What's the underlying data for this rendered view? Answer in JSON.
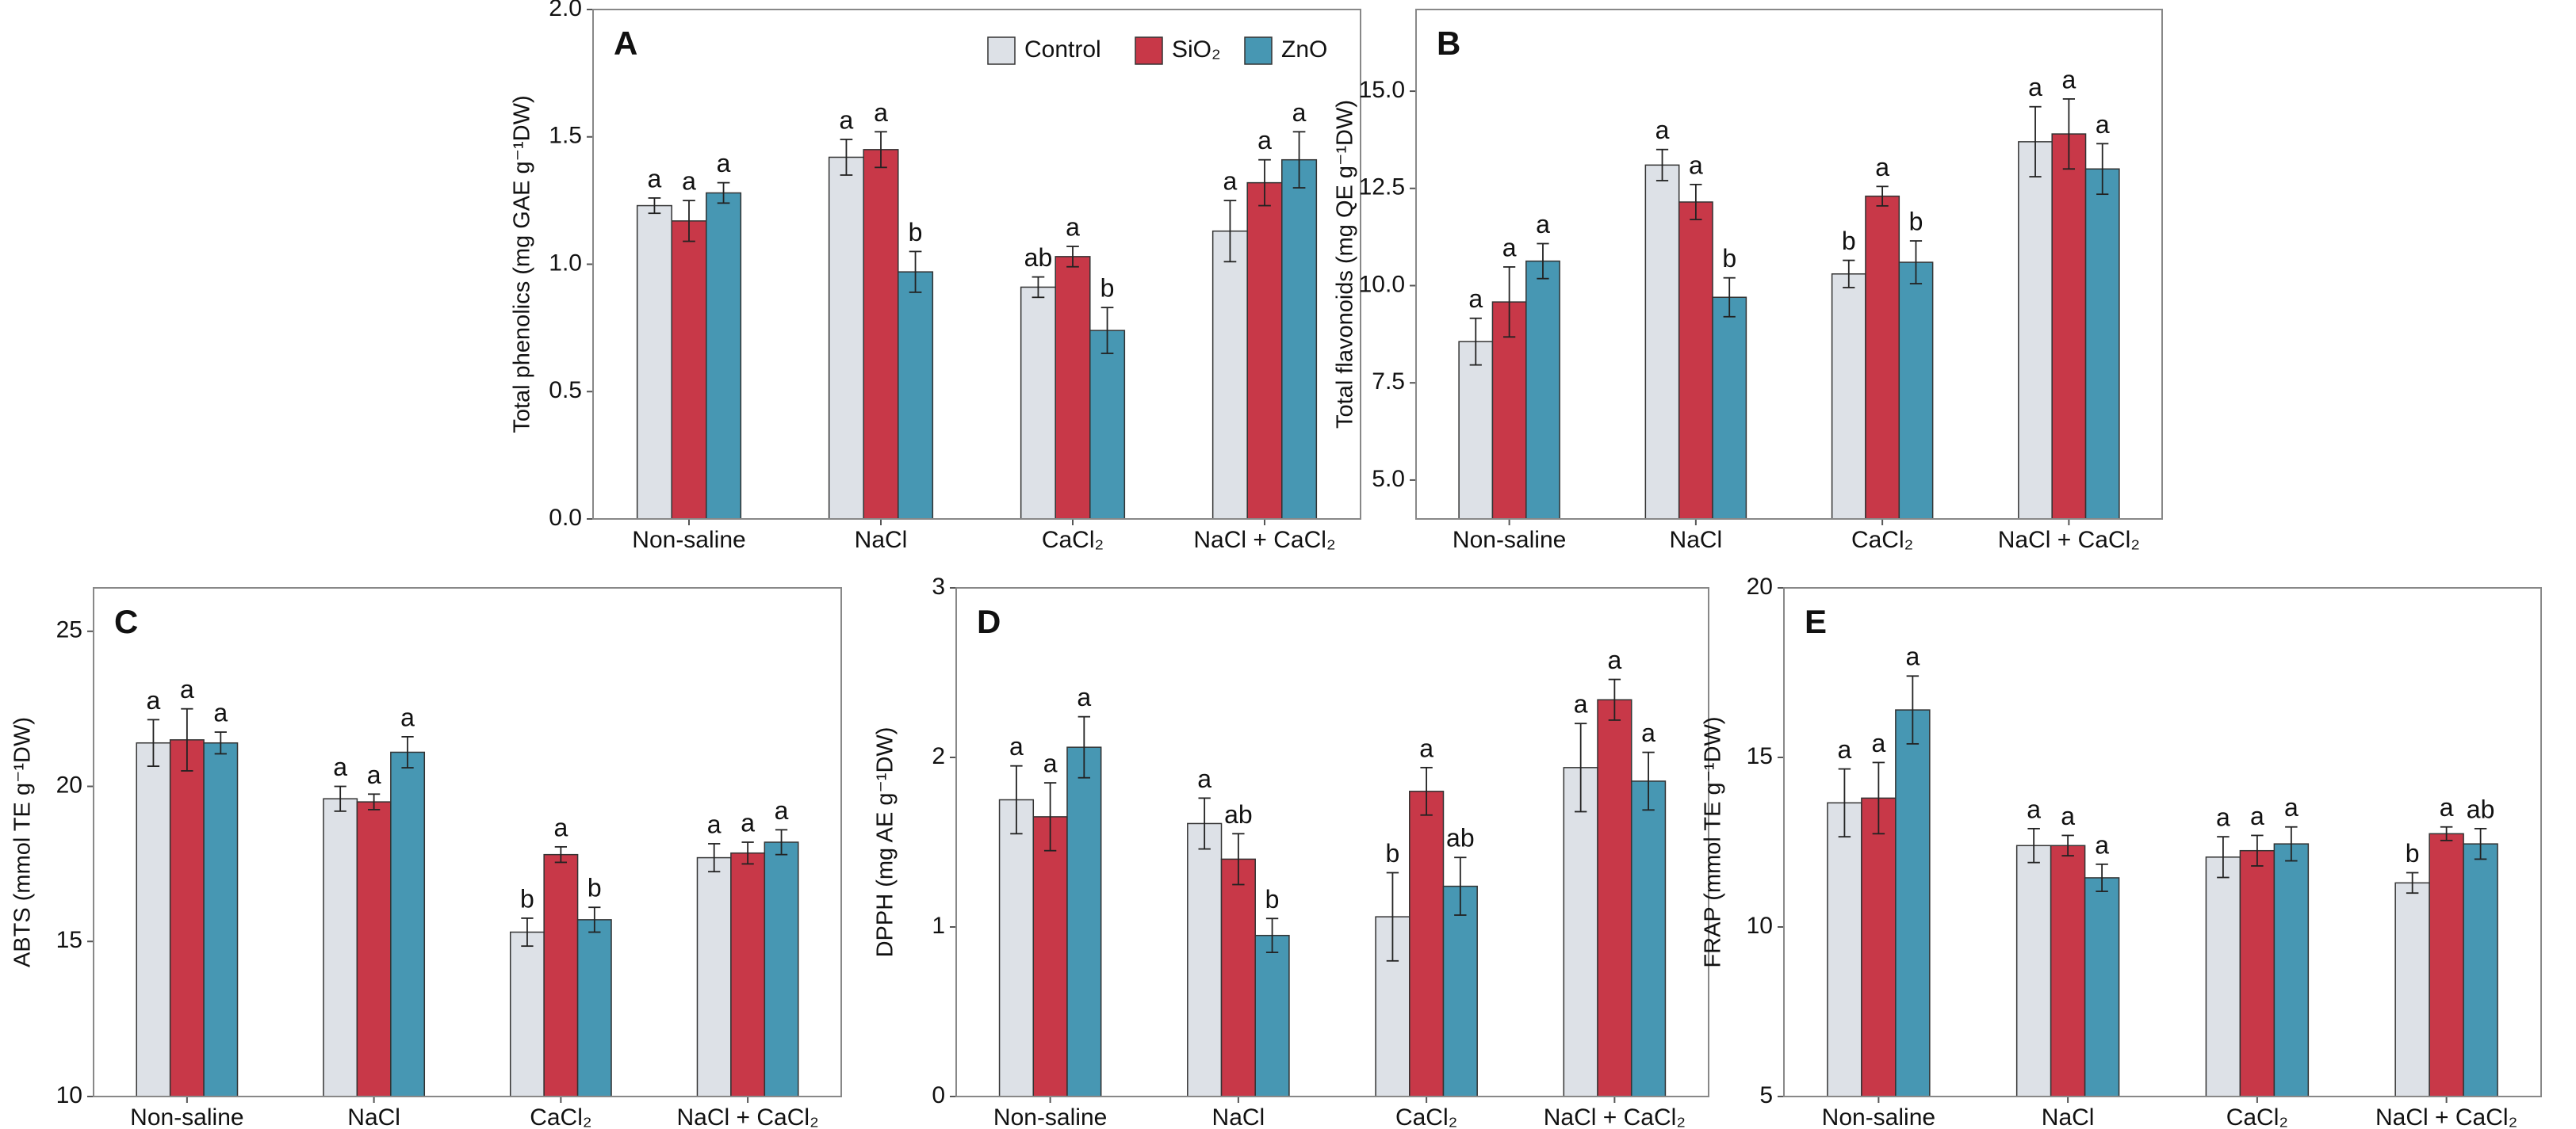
{
  "chart_data": [
    {
      "type": "bar",
      "label": "A",
      "ylabel": "Total phenolics (mg GAE g⁻¹DW)",
      "categories": [
        "Non-saline",
        "NaCl",
        "CaCl₂",
        "NaCl + CaCl₂"
      ],
      "series": [
        {
          "name": "Control",
          "color": "#dde1e7",
          "values": [
            1.23,
            1.42,
            0.91,
            1.13
          ],
          "errors": [
            0.03,
            0.07,
            0.04,
            0.12
          ],
          "labels": [
            "a",
            "a",
            "ab",
            "a"
          ]
        },
        {
          "name": "SiO₂",
          "color": "#c83848",
          "values": [
            1.17,
            1.45,
            1.03,
            1.32
          ],
          "errors": [
            0.08,
            0.07,
            0.04,
            0.09
          ],
          "labels": [
            "a",
            "a",
            "a",
            "a"
          ]
        },
        {
          "name": "ZnO",
          "color": "#4797b3",
          "values": [
            1.28,
            0.97,
            0.74,
            1.41
          ],
          "errors": [
            0.04,
            0.08,
            0.09,
            0.11
          ],
          "labels": [
            "a",
            "b",
            "b",
            "a"
          ]
        }
      ],
      "ylim": [
        0,
        2
      ],
      "yticks": [
        {
          "value": 0,
          "label": "0.0"
        },
        {
          "value": 0.5,
          "label": "0.5"
        },
        {
          "value": 1,
          "label": "1.0"
        },
        {
          "value": 1.5,
          "label": "1.5"
        },
        {
          "value": 2,
          "label": "2.0"
        }
      ],
      "legend": "top-right"
    },
    {
      "type": "bar",
      "label": "B",
      "ylabel": "Total flavonoids (mg QE g⁻¹DW)",
      "categories": [
        "Non-saline",
        "NaCl",
        "CaCl₂",
        "NaCl + CaCl₂"
      ],
      "series": [
        {
          "color": "#dde1e7",
          "values": [
            8.56,
            13.1,
            10.3,
            13.7
          ],
          "errors": [
            0.6,
            0.4,
            0.35,
            0.9
          ],
          "labels": [
            "a",
            "a",
            "b",
            "a"
          ]
        },
        {
          "color": "#c83848",
          "values": [
            9.58,
            12.15,
            12.3,
            13.9
          ],
          "errors": [
            0.9,
            0.45,
            0.25,
            0.9
          ],
          "labels": [
            "a",
            "a",
            "a",
            "a"
          ]
        },
        {
          "color": "#4797b3",
          "values": [
            10.63,
            9.7,
            10.6,
            13.0
          ],
          "errors": [
            0.45,
            0.5,
            0.55,
            0.65
          ],
          "labels": [
            "a",
            "b",
            "b",
            "a"
          ]
        }
      ],
      "ylim": [
        4,
        17.1
      ],
      "yticks": [
        {
          "value": 5,
          "label": "5.0"
        },
        {
          "value": 7.5,
          "label": "7.5"
        },
        {
          "value": 10,
          "label": "10.0"
        },
        {
          "value": 12.5,
          "label": "12.5"
        },
        {
          "value": 15,
          "label": "15.0"
        }
      ]
    },
    {
      "type": "bar",
      "label": "C",
      "ylabel": "ABTS (mmol TE g⁻¹DW)",
      "categories": [
        "Non-saline",
        "NaCl",
        "CaCl₂",
        "NaCl + CaCl₂"
      ],
      "series": [
        {
          "color": "#dde1e7",
          "values": [
            21.4,
            19.6,
            15.3,
            17.7
          ],
          "errors": [
            0.75,
            0.4,
            0.45,
            0.45
          ],
          "labels": [
            "a",
            "a",
            "b",
            "a"
          ]
        },
        {
          "color": "#c83848",
          "values": [
            21.5,
            19.5,
            17.8,
            17.85
          ],
          "errors": [
            1.0,
            0.25,
            0.25,
            0.35
          ],
          "labels": [
            "a",
            "a",
            "a",
            "a"
          ]
        },
        {
          "color": "#4797b3",
          "values": [
            21.4,
            21.1,
            15.7,
            18.2
          ],
          "errors": [
            0.35,
            0.5,
            0.4,
            0.4
          ],
          "labels": [
            "a",
            "a",
            "b",
            "a"
          ]
        }
      ],
      "ylim": [
        10,
        26.4
      ],
      "yticks": [
        10,
        15,
        20,
        25
      ]
    },
    {
      "type": "bar",
      "label": "D",
      "ylabel": "DPPH (mg AE g⁻¹DW)",
      "categories": [
        "Non-saline",
        "NaCl",
        "CaCl₂",
        "NaCl + CaCl₂"
      ],
      "series": [
        {
          "color": "#dde1e7",
          "values": [
            1.75,
            1.61,
            1.06,
            1.94
          ],
          "errors": [
            0.2,
            0.15,
            0.26,
            0.26
          ],
          "labels": [
            "a",
            "a",
            "b",
            "a"
          ]
        },
        {
          "color": "#c83848",
          "values": [
            1.65,
            1.4,
            1.8,
            2.34
          ],
          "errors": [
            0.2,
            0.15,
            0.14,
            0.12
          ],
          "labels": [
            "a",
            "ab",
            "a",
            "a"
          ]
        },
        {
          "color": "#4797b3",
          "values": [
            2.06,
            0.95,
            1.24,
            1.86
          ],
          "errors": [
            0.18,
            0.1,
            0.17,
            0.17
          ],
          "labels": [
            "a",
            "b",
            "ab",
            "a"
          ]
        }
      ],
      "ylim": [
        0,
        3
      ],
      "yticks": [
        0,
        1,
        2,
        3
      ]
    },
    {
      "type": "bar",
      "label": "E",
      "ylabel": "FRAP (mmol TE g⁻¹DW)",
      "categories": [
        "Non-saline",
        "NaCl",
        "CaCl₂",
        "NaCl + CaCl₂"
      ],
      "series": [
        {
          "color": "#dde1e7",
          "values": [
            13.66,
            12.4,
            12.06,
            11.3
          ],
          "errors": [
            1.0,
            0.5,
            0.6,
            0.3
          ],
          "labels": [
            "a",
            "a",
            "a",
            "b"
          ]
        },
        {
          "color": "#c83848",
          "values": [
            13.8,
            12.4,
            12.25,
            12.75
          ],
          "errors": [
            1.05,
            0.3,
            0.45,
            0.2
          ],
          "labels": [
            "a",
            "a",
            "a",
            "a"
          ]
        },
        {
          "color": "#4797b3",
          "values": [
            16.4,
            11.45,
            12.45,
            12.45
          ],
          "errors": [
            1.0,
            0.4,
            0.5,
            0.45
          ],
          "labels": [
            "a",
            "a",
            "a",
            "ab"
          ]
        }
      ],
      "ylim": [
        5,
        20
      ],
      "yticks": [
        5,
        10,
        15,
        20
      ]
    }
  ]
}
